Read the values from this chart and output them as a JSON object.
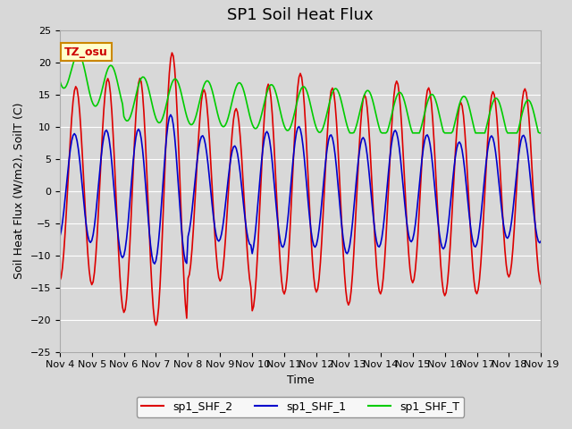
{
  "title": "SP1 Soil Heat Flux",
  "ylabel": "Soil Heat Flux (W/m2), SoilT (C)",
  "xlabel": "Time",
  "ylim": [
    -25,
    25
  ],
  "yticks": [
    -25,
    -20,
    -15,
    -10,
    -5,
    0,
    5,
    10,
    15,
    20,
    25
  ],
  "xtick_labels": [
    "Nov 4",
    "Nov 5",
    "Nov 6",
    "Nov 7",
    "Nov 8",
    "Nov 9",
    "Nov 10",
    "Nov 11",
    "Nov 12",
    "Nov 13",
    "Nov 14",
    "Nov 15",
    "Nov 16",
    "Nov 17",
    "Nov 18",
    "Nov 19"
  ],
  "legend_labels": [
    "sp1_SHF_2",
    "sp1_SHF_1",
    "sp1_SHF_T"
  ],
  "line_colors": [
    "#dd0000",
    "#0000cc",
    "#00cc00"
  ],
  "tz_label": "TZ_osu",
  "background_color": "#e8e8e8",
  "plot_bg_color": "#d8d8d8",
  "grid_color": "#ffffff",
  "n_days": 15,
  "period_hours": 24
}
